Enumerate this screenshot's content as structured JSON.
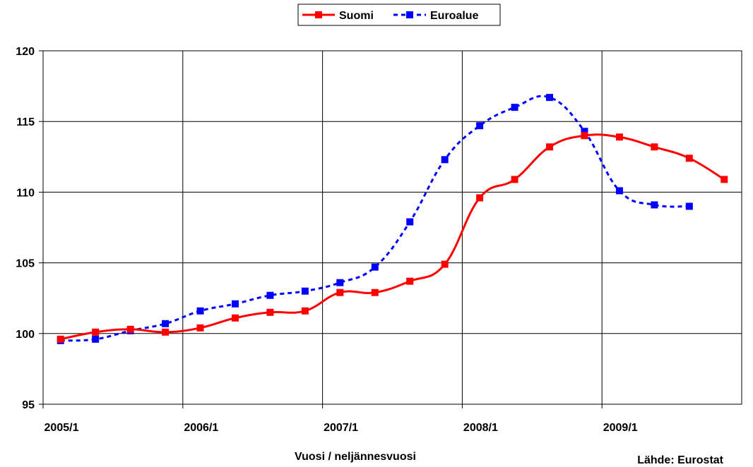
{
  "chart_data": {
    "type": "line",
    "title": "",
    "xlabel": "Vuosi / neljännesvuosi",
    "ylabel": "",
    "source": "Lähde: Eurostat",
    "ylim": [
      95,
      120
    ],
    "yticks": [
      "95",
      "100",
      "105",
      "110",
      "115",
      "120"
    ],
    "xticks": [
      "2005/1",
      "2006/1",
      "2007/1",
      "2008/1",
      "2009/1"
    ],
    "x": [
      "2005/1",
      "2005/2",
      "2005/3",
      "2005/4",
      "2006/1",
      "2006/2",
      "2006/3",
      "2006/4",
      "2007/1",
      "2007/2",
      "2007/3",
      "2007/4",
      "2008/1",
      "2008/2",
      "2008/3",
      "2008/4",
      "2009/1",
      "2009/2",
      "2009/3",
      "2009/4"
    ],
    "grid": true,
    "legend_position": "top-center",
    "series": [
      {
        "name": "Suomi",
        "color": "#ff0000",
        "style": "solid",
        "values": [
          99.6,
          100.1,
          100.3,
          100.1,
          100.4,
          101.1,
          101.5,
          101.6,
          102.9,
          102.9,
          103.7,
          104.9,
          109.6,
          110.9,
          113.2,
          114.0,
          113.9,
          113.2,
          112.4,
          110.9
        ]
      },
      {
        "name": "Euroalue",
        "color": "#0000ff",
        "style": "dashed",
        "values": [
          99.5,
          99.6,
          100.2,
          100.7,
          101.6,
          102.1,
          102.7,
          103.0,
          103.6,
          104.7,
          107.9,
          112.3,
          114.7,
          116.0,
          116.7,
          114.3,
          110.1,
          109.1,
          109.0,
          null
        ]
      }
    ]
  }
}
